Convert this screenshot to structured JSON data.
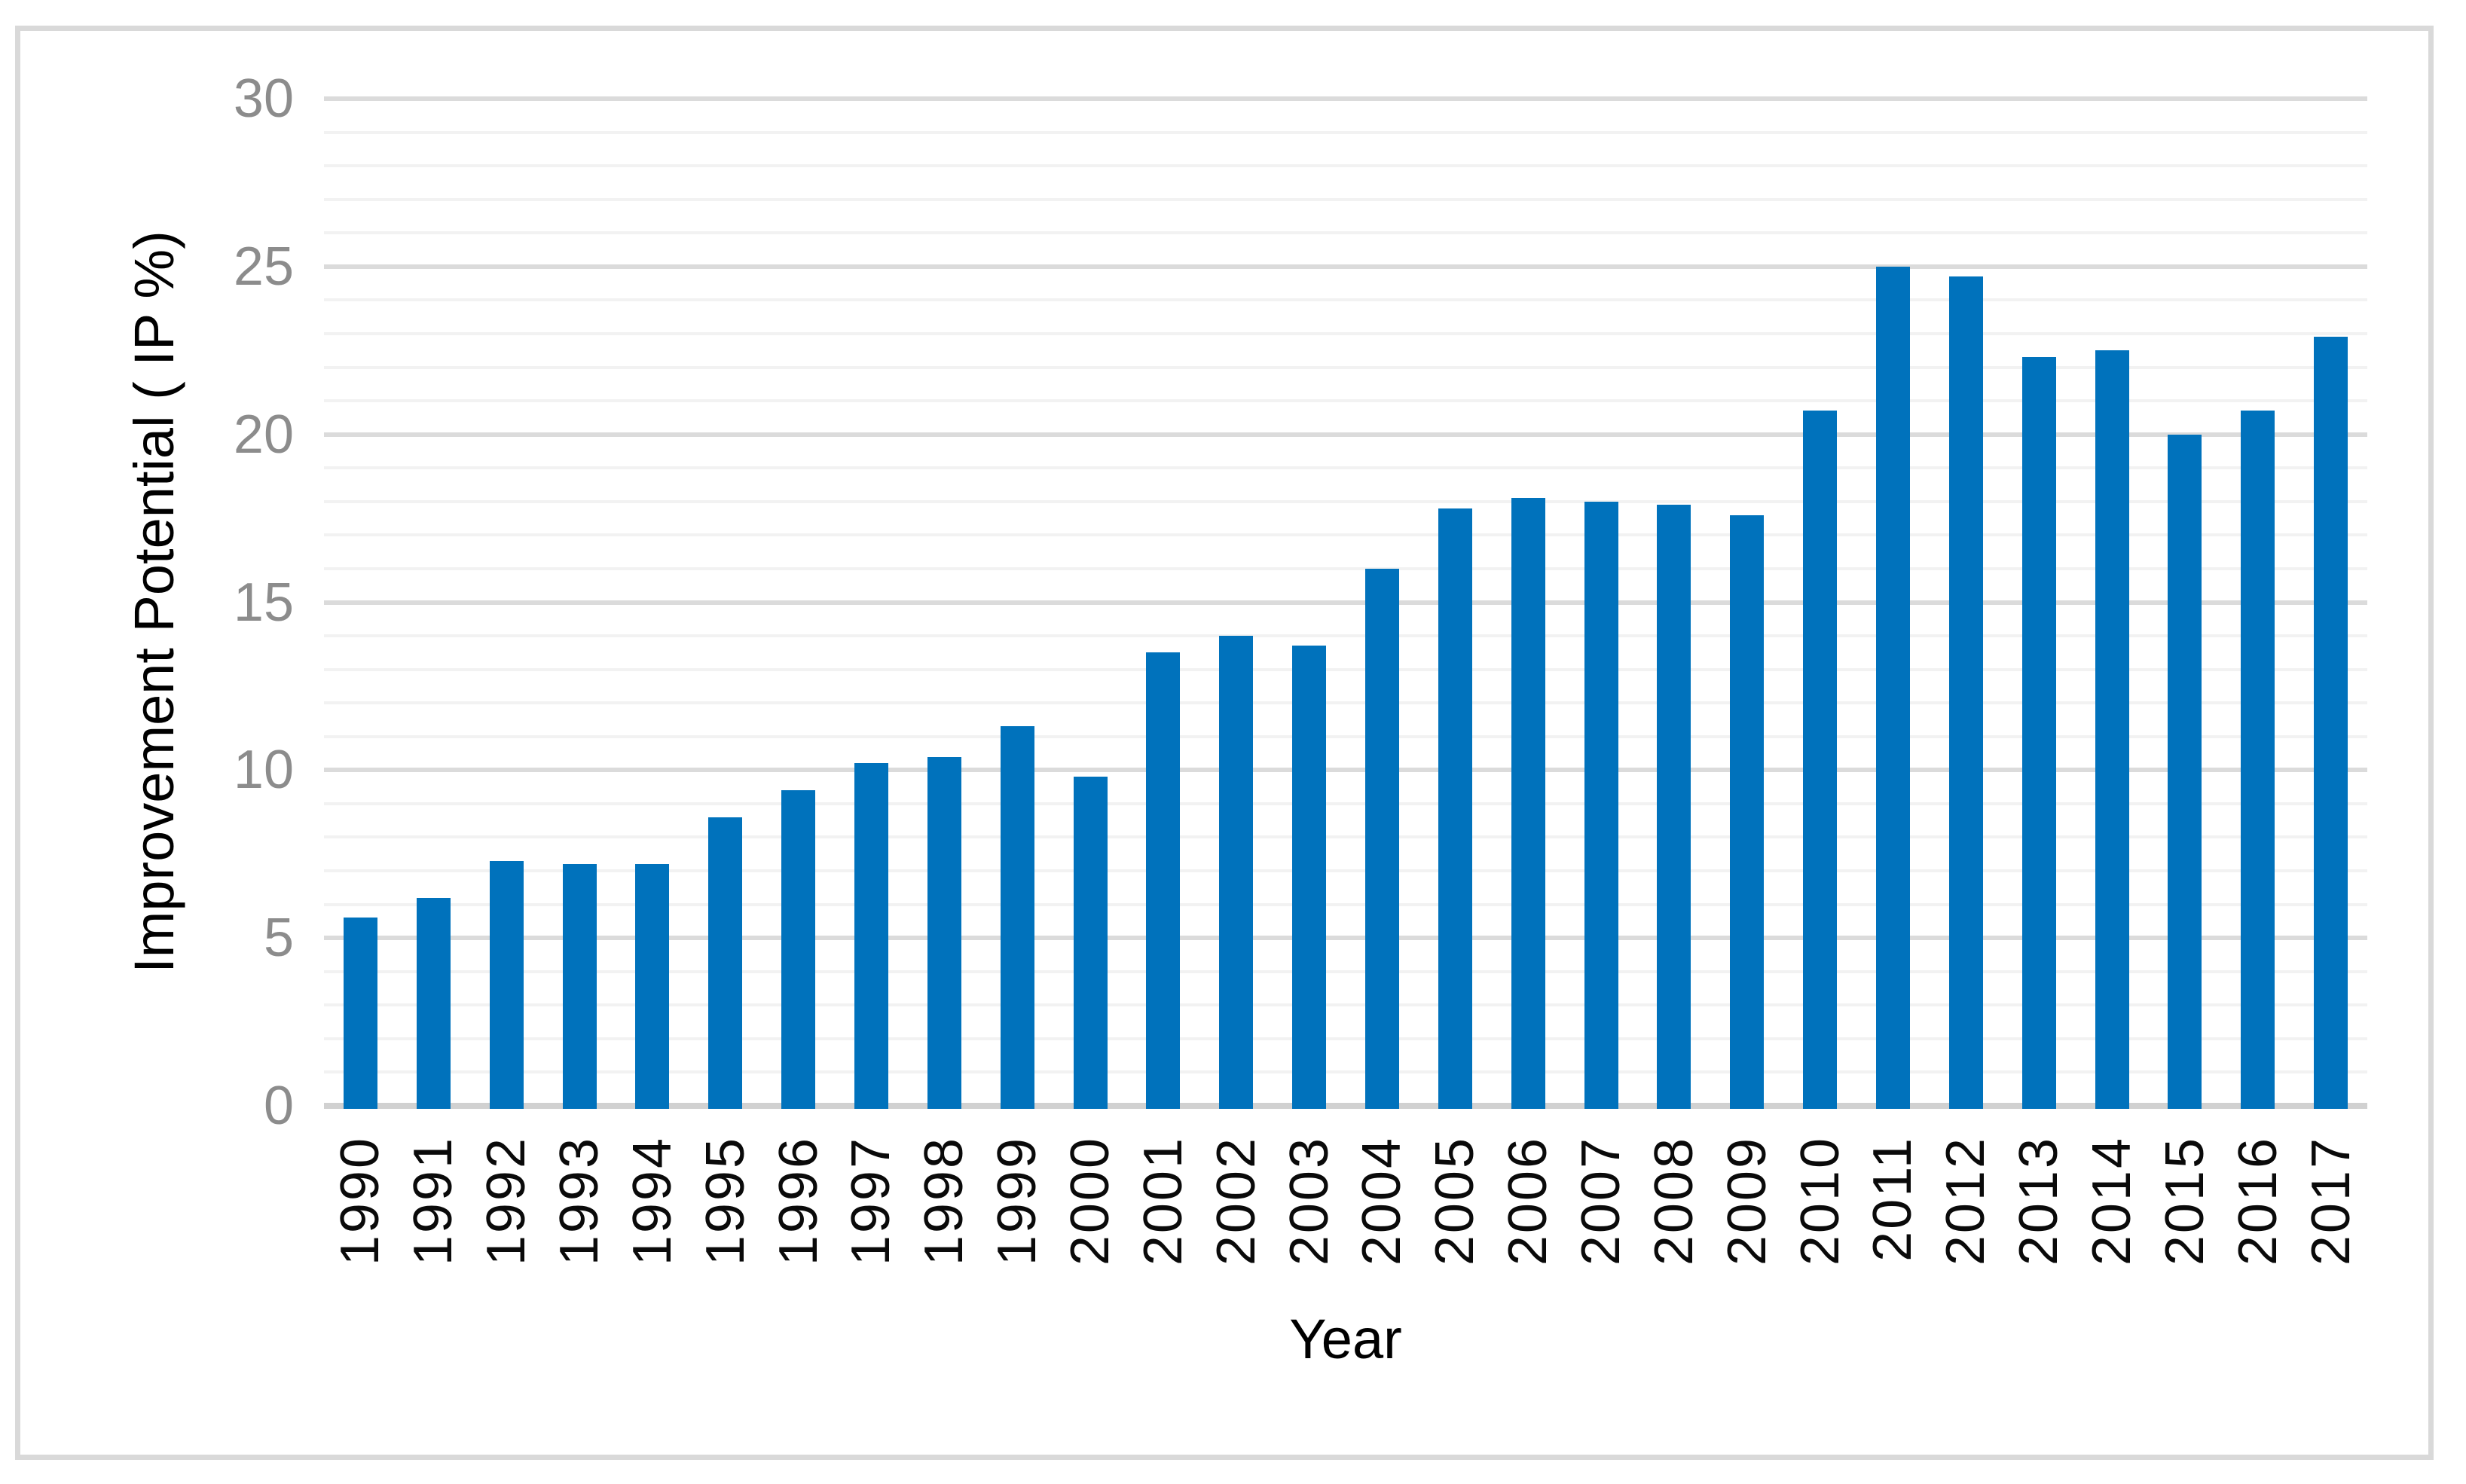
{
  "chart_data": {
    "type": "bar",
    "title": "",
    "xlabel": "Year",
    "ylabel": "Improvement Potential ( IP %)",
    "categories": [
      "1990",
      "1991",
      "1992",
      "1993",
      "1994",
      "1995",
      "1996",
      "1997",
      "1998",
      "1999",
      "2000",
      "2001",
      "2002",
      "2003",
      "2004",
      "2005",
      "2006",
      "2007",
      "2008",
      "2009",
      "2010",
      "2011",
      "2012",
      "2013",
      "2014",
      "2015",
      "2016",
      "2017"
    ],
    "values": [
      5.6,
      6.2,
      7.3,
      7.2,
      7.2,
      8.6,
      9.4,
      10.2,
      10.4,
      11.3,
      9.8,
      13.5,
      14.0,
      13.7,
      16.0,
      17.8,
      18.1,
      18.0,
      17.9,
      17.6,
      20.7,
      25.0,
      24.7,
      22.3,
      22.5,
      20.0,
      20.7,
      22.9
    ],
    "ylim": [
      0,
      30
    ],
    "y_major_ticks": [
      "0",
      "5",
      "10",
      "15",
      "20",
      "25",
      "30"
    ],
    "y_major_unit": 5,
    "y_minor_unit": 1,
    "grid": "on",
    "legend_position": "none",
    "colors": {
      "bar": "#0072BC",
      "gridline_major": "#DBDBDB",
      "gridline_minor": "#F2F2F2",
      "axis_line": "#D1D1D1",
      "y_tick_label": "#8C8C8C",
      "x_tick_label": "#0A0A0A",
      "axis_title": "#000000",
      "chart_border": "#D9D9D9",
      "background": "#FFFFFF"
    }
  }
}
